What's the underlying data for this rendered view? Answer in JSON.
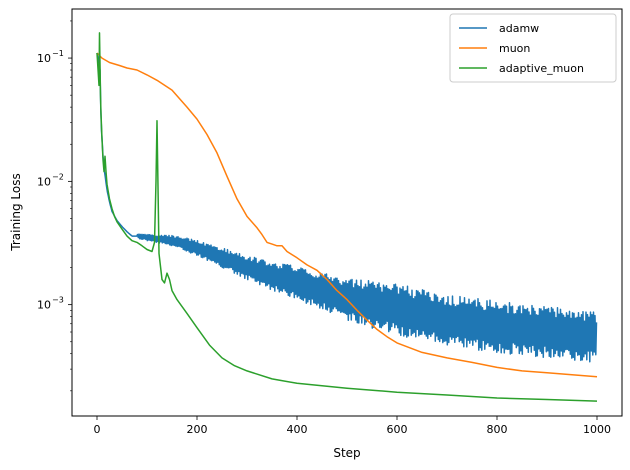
{
  "chart_data": {
    "type": "line",
    "title": "",
    "xlabel": "Step",
    "ylabel": "Training Loss",
    "xlim": [
      -50,
      1050
    ],
    "ylim": [
      0.000125,
      0.25
    ],
    "yscale": "log",
    "xticks": [
      0,
      200,
      400,
      600,
      800,
      1000
    ],
    "xtick_labels": [
      "0",
      "200",
      "400",
      "600",
      "800",
      "1000"
    ],
    "yticks": [
      0.001,
      0.01,
      0.1
    ],
    "ytick_label_bases": [
      "10",
      "10",
      "10"
    ],
    "ytick_label_exps": [
      "−3",
      "−2",
      "−1"
    ],
    "grid": false,
    "legend_position": "top-right",
    "series": [
      {
        "name": "adamw",
        "color": "#1f77b4",
        "noisy": true,
        "points": [
          [
            0,
            0.11
          ],
          [
            6,
            0.08
          ],
          [
            8,
            0.03
          ],
          [
            10,
            0.022
          ],
          [
            12,
            0.016
          ],
          [
            15,
            0.012
          ],
          [
            20,
            0.0085
          ],
          [
            25,
            0.0068
          ],
          [
            30,
            0.0057
          ],
          [
            40,
            0.0048
          ],
          [
            50,
            0.0043
          ],
          [
            60,
            0.0039
          ],
          [
            70,
            0.0036
          ],
          [
            80,
            0.0036
          ],
          [
            100,
            0.0035
          ],
          [
            150,
            0.0033
          ],
          [
            200,
            0.0029
          ],
          [
            250,
            0.0024
          ],
          [
            300,
            0.002
          ],
          [
            350,
            0.0017
          ],
          [
            400,
            0.0015
          ],
          [
            450,
            0.0013
          ],
          [
            500,
            0.0011
          ],
          [
            550,
            0.001
          ],
          [
            600,
            0.00092
          ],
          [
            650,
            0.00082
          ],
          [
            700,
            0.00075
          ],
          [
            750,
            0.0007
          ],
          [
            800,
            0.00066
          ],
          [
            850,
            0.00063
          ],
          [
            900,
            0.0006
          ],
          [
            950,
            0.00057
          ],
          [
            1000,
            0.00055
          ]
        ]
      },
      {
        "name": "muon",
        "color": "#ff7f0e",
        "noisy": false,
        "points": [
          [
            0,
            0.11
          ],
          [
            10,
            0.1
          ],
          [
            25,
            0.092
          ],
          [
            45,
            0.087
          ],
          [
            60,
            0.083
          ],
          [
            80,
            0.08
          ],
          [
            100,
            0.073
          ],
          [
            120,
            0.066
          ],
          [
            150,
            0.055
          ],
          [
            180,
            0.04
          ],
          [
            200,
            0.032
          ],
          [
            220,
            0.024
          ],
          [
            240,
            0.017
          ],
          [
            260,
            0.011
          ],
          [
            280,
            0.0072
          ],
          [
            300,
            0.0052
          ],
          [
            320,
            0.0042
          ],
          [
            330,
            0.0037
          ],
          [
            340,
            0.0032
          ],
          [
            350,
            0.0031
          ],
          [
            360,
            0.003
          ],
          [
            370,
            0.003
          ],
          [
            380,
            0.0027
          ],
          [
            400,
            0.0024
          ],
          [
            420,
            0.0021
          ],
          [
            440,
            0.0019
          ],
          [
            460,
            0.0016
          ],
          [
            480,
            0.0013
          ],
          [
            500,
            0.0011
          ],
          [
            520,
            0.0009
          ],
          [
            540,
            0.00075
          ],
          [
            560,
            0.00063
          ],
          [
            580,
            0.00055
          ],
          [
            600,
            0.00049
          ],
          [
            650,
            0.00041
          ],
          [
            700,
            0.00037
          ],
          [
            750,
            0.00034
          ],
          [
            800,
            0.00031
          ],
          [
            850,
            0.00029
          ],
          [
            900,
            0.00028
          ],
          [
            950,
            0.00027
          ],
          [
            1000,
            0.00026
          ]
        ]
      },
      {
        "name": "adaptive_muon",
        "color": "#2ca02c",
        "noisy": false,
        "points": [
          [
            0,
            0.11
          ],
          [
            3,
            0.07
          ],
          [
            4,
            0.06
          ],
          [
            5,
            0.16
          ],
          [
            6,
            0.09
          ],
          [
            7,
            0.05
          ],
          [
            8,
            0.035
          ],
          [
            9,
            0.028
          ],
          [
            10,
            0.022
          ],
          [
            12,
            0.015
          ],
          [
            14,
            0.012
          ],
          [
            16,
            0.016
          ],
          [
            18,
            0.012
          ],
          [
            20,
            0.0095
          ],
          [
            22,
            0.0085
          ],
          [
            25,
            0.0072
          ],
          [
            30,
            0.006
          ],
          [
            35,
            0.0052
          ],
          [
            40,
            0.0047
          ],
          [
            50,
            0.0041
          ],
          [
            60,
            0.0036
          ],
          [
            70,
            0.0033
          ],
          [
            80,
            0.0032
          ],
          [
            90,
            0.003
          ],
          [
            100,
            0.0028
          ],
          [
            110,
            0.0027
          ],
          [
            115,
            0.0032
          ],
          [
            118,
            0.01
          ],
          [
            120,
            0.031
          ],
          [
            122,
            0.009
          ],
          [
            124,
            0.0026
          ],
          [
            130,
            0.0016
          ],
          [
            135,
            0.0015
          ],
          [
            140,
            0.0018
          ],
          [
            145,
            0.0016
          ],
          [
            150,
            0.0013
          ],
          [
            160,
            0.0011
          ],
          [
            180,
            0.00085
          ],
          [
            200,
            0.00065
          ],
          [
            225,
            0.00047
          ],
          [
            250,
            0.00037
          ],
          [
            275,
            0.00032
          ],
          [
            300,
            0.00029
          ],
          [
            350,
            0.00025
          ],
          [
            400,
            0.00023
          ],
          [
            450,
            0.00022
          ],
          [
            500,
            0.00021
          ],
          [
            600,
            0.000195
          ],
          [
            700,
            0.000185
          ],
          [
            800,
            0.000175
          ],
          [
            900,
            0.00017
          ],
          [
            1000,
            0.000165
          ]
        ]
      }
    ]
  }
}
